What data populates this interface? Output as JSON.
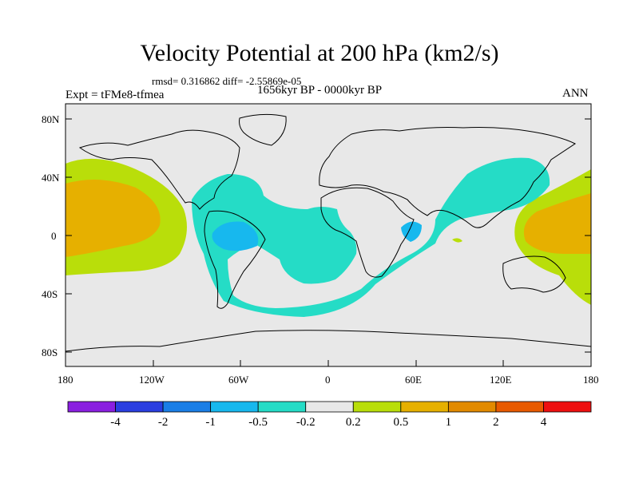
{
  "title": "Velocity Potential at 200 hPa (km2/s)",
  "stats_line": "rmsd= 0.316862 diff= -2.55869e-05",
  "experiment": "Expt = tFMe8-tfmea",
  "period": "1656kyr BP - 0000kyr BP",
  "season": "ANN",
  "axes": {
    "lat_labels": [
      "80N",
      "40N",
      "0",
      "40S",
      "80S"
    ],
    "lon_labels": [
      "180",
      "120W",
      "60W",
      "0",
      "60E",
      "120E",
      "180"
    ]
  },
  "colorbar": {
    "labels": [
      "-4",
      "-2",
      "-1",
      "-0.5",
      "-0.2",
      "0.2",
      "0.5",
      "1",
      "2",
      "4"
    ],
    "colors": [
      "#8a1fe0",
      "#2a3ee0",
      "#1a7ee6",
      "#17b8ee",
      "#25dcc6",
      "#e8e8e8",
      "#b9de0a",
      "#e6b000",
      "#e28a00",
      "#e85a00",
      "#ee1010"
    ]
  },
  "map_colors": {
    "background": "#e8e8e8",
    "neg_0_2_to_0_5": "#25dcc6",
    "neg_0_5_to_1": "#17b8ee",
    "pos_0_2_to_0_5": "#b9de0a",
    "pos_0_5_to_1": "#e6b000",
    "coastline": "#000000"
  }
}
